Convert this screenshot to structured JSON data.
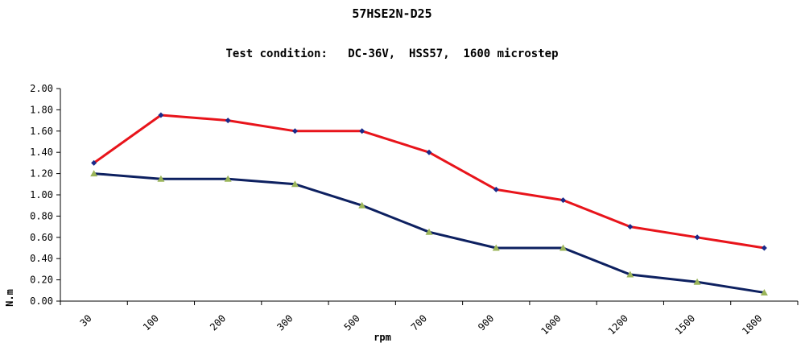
{
  "chart_data": {
    "type": "line",
    "title": "57HSE2N-D25",
    "subtitle": "Test condition:   DC-36V,  HSS57,  1600 microstep",
    "xlabel": "rpm",
    "ylabel": "N.m",
    "categories": [
      "30",
      "100",
      "200",
      "300",
      "500",
      "700",
      "900",
      "1000",
      "1200",
      "1500",
      "1800"
    ],
    "ylim": [
      0,
      2.0
    ],
    "yticks": [
      "0.00",
      "0.20",
      "0.40",
      "0.60",
      "0.80",
      "1.00",
      "1.20",
      "1.40",
      "1.60",
      "1.80",
      "2.00"
    ],
    "grid": false,
    "series": [
      {
        "color": "#e8141b",
        "marker": "diamond",
        "marker_color": "#1a2a8a",
        "values": [
          1.3,
          1.75,
          1.7,
          1.6,
          1.6,
          1.4,
          1.05,
          0.95,
          0.7,
          0.6,
          0.5
        ]
      },
      {
        "color": "#0d2060",
        "marker": "triangle",
        "marker_color": "#9bb55a",
        "values": [
          1.2,
          1.15,
          1.15,
          1.1,
          0.9,
          0.65,
          0.5,
          0.5,
          0.25,
          0.18,
          0.08
        ]
      }
    ]
  }
}
